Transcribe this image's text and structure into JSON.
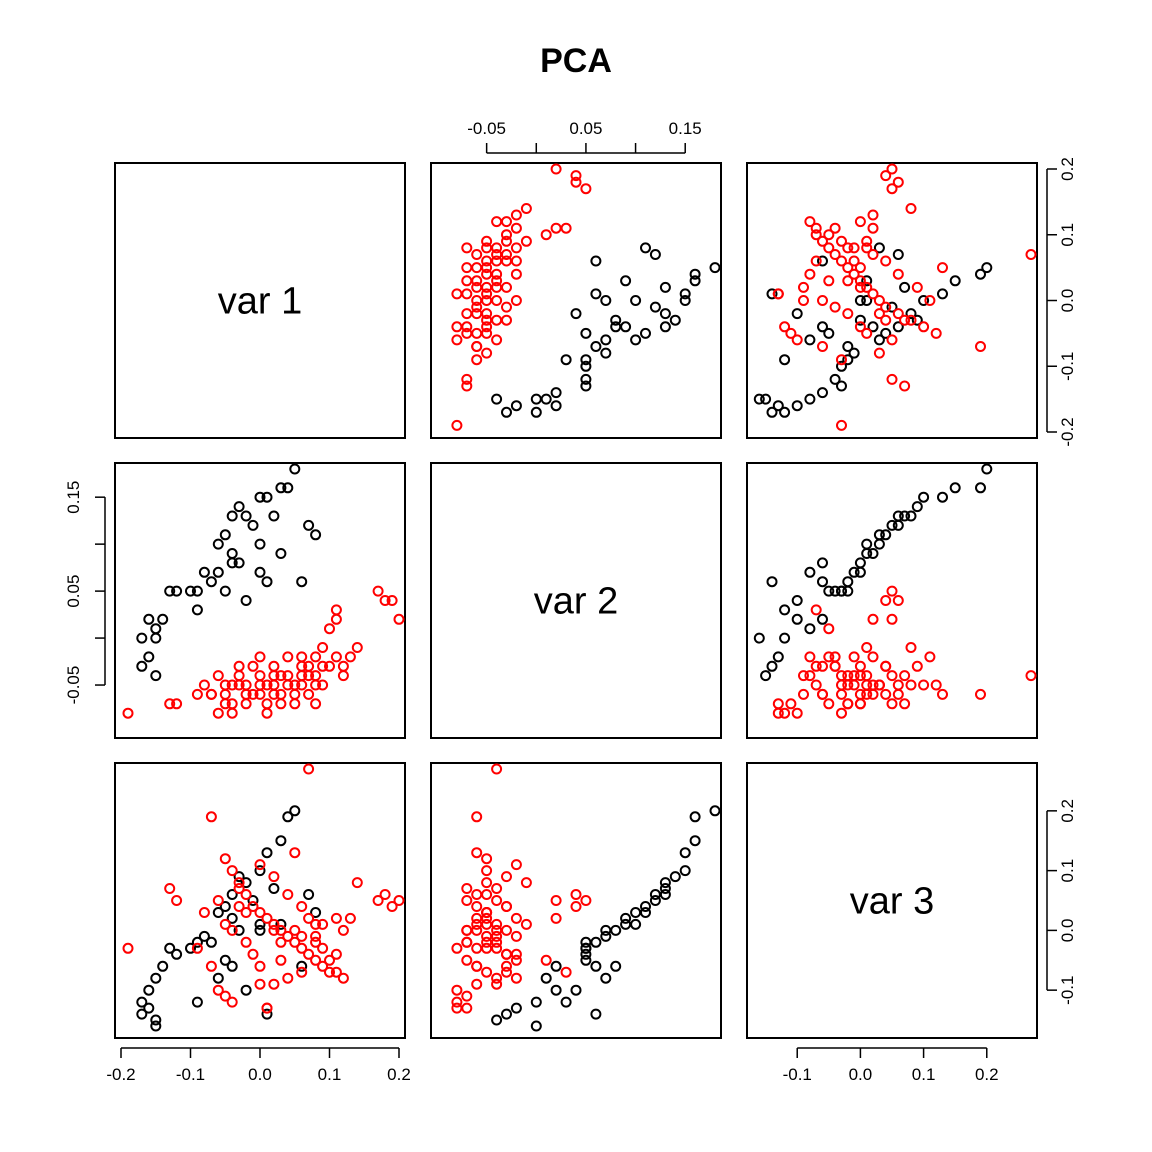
{
  "chart_data": {
    "type": "scatter",
    "title": "PCA",
    "variables": [
      "var 1",
      "var 2",
      "var 3"
    ],
    "ranges": [
      [
        -0.2,
        0.2
      ],
      [
        -0.1,
        0.18
      ],
      [
        -0.17,
        0.27
      ]
    ],
    "ticks": [
      {
        "values": [
          -0.2,
          -0.1,
          0.0,
          0.1,
          0.2
        ],
        "labels": [
          "-0.2",
          "-0.1",
          "0.0",
          "0.1",
          "0.2"
        ]
      },
      {
        "values": [
          -0.05,
          0.0,
          0.05,
          0.1,
          0.15
        ],
        "labels": [
          "-0.05",
          "",
          "0.05",
          "",
          "0.15"
        ]
      },
      {
        "values": [
          -0.1,
          0.0,
          0.1,
          0.2
        ],
        "labels": [
          "-0.1",
          "0.0",
          "0.1",
          "0.2"
        ]
      }
    ],
    "colors": {
      "group1": "#000000",
      "group2": "#ff0000"
    },
    "groups": [
      {
        "color": "#000000",
        "points": [
          [
            0.05,
            0.18,
            0.2
          ],
          [
            0.04,
            0.16,
            0.19
          ],
          [
            0.03,
            0.16,
            0.15
          ],
          [
            0.01,
            0.15,
            0.13
          ],
          [
            0.0,
            0.15,
            0.1
          ],
          [
            -0.03,
            0.14,
            0.09
          ],
          [
            -0.02,
            0.13,
            0.08
          ],
          [
            -0.04,
            0.13,
            0.06
          ],
          [
            0.02,
            0.13,
            0.07
          ],
          [
            0.07,
            0.12,
            0.06
          ],
          [
            -0.01,
            0.12,
            0.05
          ],
          [
            -0.05,
            0.11,
            0.04
          ],
          [
            0.08,
            0.11,
            0.03
          ],
          [
            -0.06,
            0.1,
            0.03
          ],
          [
            -0.04,
            0.09,
            0.02
          ],
          [
            0.0,
            0.1,
            0.01
          ],
          [
            0.03,
            0.09,
            0.01
          ],
          [
            -0.03,
            0.08,
            0.0
          ],
          [
            0.0,
            0.07,
            0.0
          ],
          [
            -0.08,
            0.07,
            -0.01
          ],
          [
            -0.07,
            0.06,
            -0.02
          ],
          [
            -0.09,
            0.05,
            -0.02
          ],
          [
            -0.1,
            0.05,
            -0.03
          ],
          [
            -0.12,
            0.05,
            -0.04
          ],
          [
            -0.05,
            0.05,
            -0.05
          ],
          [
            -0.13,
            0.05,
            -0.03
          ],
          [
            -0.14,
            0.02,
            -0.06
          ],
          [
            -0.15,
            0.01,
            -0.08
          ],
          [
            -0.16,
            0.02,
            -0.1
          ],
          [
            -0.17,
            0.0,
            -0.12
          ],
          [
            -0.16,
            -0.02,
            -0.13
          ],
          [
            -0.17,
            -0.03,
            -0.14
          ],
          [
            -0.15,
            -0.04,
            -0.15
          ],
          [
            -0.15,
            0.0,
            -0.16
          ],
          [
            -0.09,
            0.03,
            -0.12
          ],
          [
            0.06,
            0.06,
            -0.06
          ],
          [
            -0.02,
            0.04,
            -0.1
          ],
          [
            0.01,
            0.06,
            -0.14
          ],
          [
            -0.04,
            0.08,
            -0.06
          ],
          [
            -0.06,
            0.07,
            -0.08
          ]
        ]
      },
      {
        "color": "#ff0000",
        "points": [
          [
            -0.19,
            -0.08,
            -0.03
          ],
          [
            -0.13,
            -0.07,
            0.07
          ],
          [
            -0.12,
            -0.07,
            0.05
          ],
          [
            -0.09,
            -0.06,
            -0.03
          ],
          [
            -0.07,
            -0.06,
            0.19
          ],
          [
            -0.05,
            -0.05,
            0.12
          ],
          [
            -0.04,
            -0.05,
            0.1
          ],
          [
            -0.03,
            -0.05,
            0.08
          ],
          [
            -0.02,
            -0.06,
            0.06
          ],
          [
            -0.01,
            -0.06,
            0.04
          ],
          [
            0.0,
            -0.05,
            0.03
          ],
          [
            0.01,
            -0.05,
            0.02
          ],
          [
            0.02,
            -0.05,
            0.01
          ],
          [
            0.03,
            -0.06,
            0.0
          ],
          [
            0.04,
            -0.04,
            -0.01
          ],
          [
            0.05,
            -0.05,
            -0.02
          ],
          [
            0.06,
            -0.04,
            -0.03
          ],
          [
            0.07,
            -0.03,
            -0.04
          ],
          [
            0.08,
            -0.02,
            -0.05
          ],
          [
            0.09,
            -0.03,
            -0.06
          ],
          [
            0.1,
            -0.03,
            -0.07
          ],
          [
            0.11,
            -0.02,
            -0.04
          ],
          [
            0.12,
            -0.04,
            -0.08
          ],
          [
            0.13,
            -0.02,
            0.02
          ],
          [
            0.14,
            -0.01,
            0.08
          ],
          [
            0.17,
            0.05,
            0.05
          ],
          [
            0.18,
            0.04,
            0.06
          ],
          [
            0.19,
            0.04,
            0.04
          ],
          [
            0.2,
            0.02,
            0.05
          ],
          [
            -0.06,
            -0.08,
            -0.1
          ],
          [
            -0.05,
            -0.07,
            -0.11
          ],
          [
            -0.04,
            -0.07,
            0.0
          ],
          [
            -0.02,
            -0.07,
            -0.02
          ],
          [
            0.0,
            -0.06,
            -0.06
          ],
          [
            0.01,
            -0.08,
            -0.13
          ],
          [
            0.02,
            -0.06,
            -0.09
          ],
          [
            0.03,
            -0.07,
            -0.05
          ],
          [
            0.05,
            -0.06,
            0.13
          ],
          [
            0.06,
            -0.05,
            -0.07
          ],
          [
            0.07,
            -0.04,
            0.27
          ],
          [
            0.08,
            -0.07,
            -0.02
          ],
          [
            0.09,
            -0.01,
            0.01
          ],
          [
            0.11,
            0.02,
            0.02
          ],
          [
            0.12,
            -0.03,
            0.0
          ],
          [
            -0.08,
            -0.05,
            0.03
          ],
          [
            -0.06,
            -0.04,
            0.05
          ],
          [
            -0.03,
            -0.04,
            0.07
          ],
          [
            -0.01,
            -0.03,
            -0.04
          ],
          [
            0.0,
            -0.02,
            0.11
          ],
          [
            0.02,
            -0.03,
            0.09
          ],
          [
            0.04,
            -0.02,
            -0.08
          ],
          [
            0.06,
            -0.03,
            0.04
          ],
          [
            0.08,
            -0.05,
            -0.01
          ],
          [
            0.1,
            0.01,
            -0.05
          ],
          [
            -0.07,
            -0.06,
            -0.06
          ],
          [
            -0.05,
            -0.06,
            0.01
          ],
          [
            -0.02,
            -0.05,
            0.03
          ],
          [
            0.0,
            -0.04,
            -0.09
          ],
          [
            0.03,
            -0.04,
            -0.02
          ],
          [
            0.05,
            -0.07,
            0.0
          ],
          [
            0.07,
            -0.06,
            0.02
          ],
          [
            0.09,
            -0.05,
            -0.03
          ],
          [
            -0.04,
            -0.08,
            -0.12
          ],
          [
            0.01,
            -0.07,
            -0.13
          ],
          [
            0.04,
            -0.05,
            0.06
          ],
          [
            0.06,
            -0.02,
            -0.01
          ],
          [
            0.08,
            -0.04,
            0.01
          ],
          [
            0.11,
            0.03,
            -0.07
          ],
          [
            -0.03,
            -0.03,
            0.04
          ],
          [
            0.02,
            -0.04,
            0.0
          ]
        ]
      }
    ]
  }
}
